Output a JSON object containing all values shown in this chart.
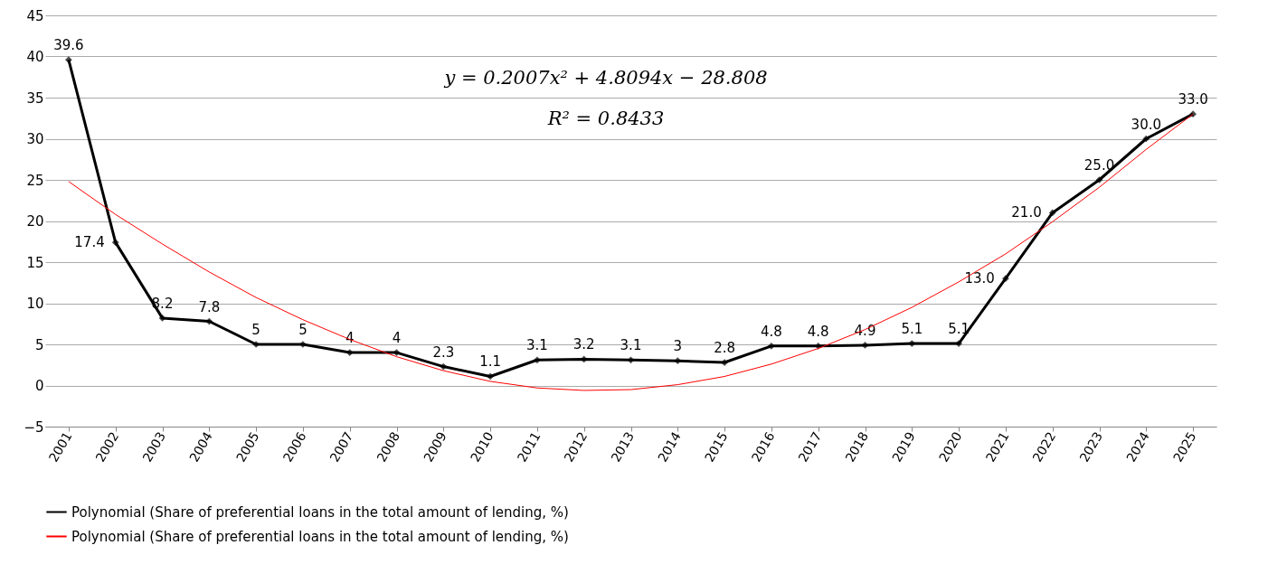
{
  "chart_data": {
    "type": "line",
    "categories": [
      "2001",
      "2002",
      "2003",
      "2004",
      "2005",
      "2006",
      "2007",
      "2008",
      "2009",
      "2010",
      "2011",
      "2012",
      "2013",
      "2014",
      "2015",
      "2016",
      "2017",
      "2018",
      "2019",
      "2020",
      "2021",
      "2022",
      "2023",
      "2024",
      "2025"
    ],
    "series": [
      {
        "name": "Polynomial (Share of preferential loans in the total amount of lending, %)",
        "color": "#000000",
        "values": [
          39.6,
          17.4,
          8.2,
          7.8,
          5,
          5,
          4,
          4,
          2.3,
          1.1,
          3.1,
          3.2,
          3.1,
          3,
          2.8,
          4.8,
          4.8,
          4.9,
          5.1,
          5.1,
          13.0,
          21.0,
          25.0,
          30.0,
          33.0
        ],
        "value_labels": [
          "39.6",
          "17.4",
          "8.2",
          "7.8",
          "5",
          "5",
          "4",
          "4",
          "2.3",
          "1.1",
          "3.1",
          "3.2",
          "3.1",
          "3",
          "2.8",
          "4.8",
          "4.8",
          "4.9",
          "5.1",
          "5.1",
          "13.0",
          "21.0",
          "25.0",
          "30.0",
          "33.0"
        ]
      },
      {
        "name": "Polynomial (Share of preferential loans in the total amount of lending, %)",
        "color": "#ff0000",
        "marker": "none",
        "values": [
          24.8,
          20.8,
          17.2,
          13.8,
          10.7,
          8.0,
          5.6,
          3.5,
          1.8,
          0.5,
          -0.3,
          -0.6,
          -0.5,
          0.1,
          1.1,
          2.6,
          4.5,
          6.8,
          9.5,
          12.6,
          16.0,
          19.9,
          24.1,
          28.7,
          33.0
        ]
      }
    ],
    "annotations": [
      "y = 0.2007x² + 4.8094x − 28.808",
      "R² = 0.8433"
    ],
    "ylim": [
      -5,
      45
    ],
    "yticks": [
      -5,
      0,
      5,
      10,
      15,
      20,
      25,
      30,
      35,
      40,
      45
    ],
    "grid": "y",
    "legend": "bottom",
    "marker": "diamond",
    "line_style": "solid"
  }
}
